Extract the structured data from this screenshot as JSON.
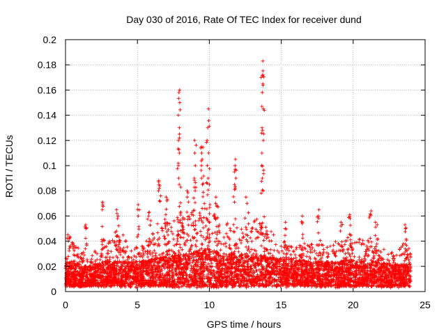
{
  "chart_data": {
    "type": "scatter",
    "title": "Day 030 of 2016, Rate Of TEC Index for receiver dund",
    "xlabel": "GPS time / hours",
    "ylabel": "ROTI / TECUs",
    "xlim": [
      0,
      25
    ],
    "ylim": [
      0,
      0.2
    ],
    "xticks": [
      "0",
      "5",
      "10",
      "15",
      "20",
      "25"
    ],
    "yticks": [
      "0",
      "0.02",
      "0.04",
      "0.06",
      "0.08",
      "0.1",
      "0.12",
      "0.14",
      "0.16",
      "0.18",
      "0.2"
    ],
    "grid": true,
    "marker": "+",
    "color": "#ff0000",
    "data_range_x": [
      0,
      24
    ],
    "envelope": [
      [
        0.0,
        0.012,
        0.03
      ],
      [
        0.5,
        0.012,
        0.04
      ],
      [
        1.0,
        0.01,
        0.035
      ],
      [
        1.5,
        0.008,
        0.03
      ],
      [
        2.0,
        0.01,
        0.032
      ],
      [
        2.5,
        0.01,
        0.038
      ],
      [
        3.0,
        0.012,
        0.04
      ],
      [
        3.5,
        0.012,
        0.05
      ],
      [
        4.0,
        0.012,
        0.048
      ],
      [
        4.5,
        0.012,
        0.04
      ],
      [
        5.0,
        0.012,
        0.035
      ],
      [
        5.5,
        0.013,
        0.04
      ],
      [
        6.0,
        0.014,
        0.045
      ],
      [
        6.5,
        0.015,
        0.052
      ],
      [
        7.0,
        0.016,
        0.055
      ],
      [
        7.5,
        0.017,
        0.058
      ],
      [
        8.0,
        0.018,
        0.062
      ],
      [
        8.5,
        0.018,
        0.06
      ],
      [
        9.0,
        0.02,
        0.065
      ],
      [
        9.5,
        0.022,
        0.075
      ],
      [
        10.0,
        0.022,
        0.07
      ],
      [
        10.5,
        0.02,
        0.062
      ],
      [
        11.0,
        0.018,
        0.058
      ],
      [
        11.5,
        0.018,
        0.055
      ],
      [
        12.0,
        0.017,
        0.05
      ],
      [
        12.5,
        0.016,
        0.052
      ],
      [
        13.0,
        0.016,
        0.055
      ],
      [
        13.5,
        0.017,
        0.06
      ],
      [
        14.0,
        0.016,
        0.052
      ],
      [
        14.5,
        0.015,
        0.045
      ],
      [
        15.0,
        0.014,
        0.04
      ],
      [
        15.5,
        0.014,
        0.042
      ],
      [
        16.0,
        0.013,
        0.04
      ],
      [
        16.5,
        0.013,
        0.038
      ],
      [
        17.0,
        0.012,
        0.038
      ],
      [
        17.5,
        0.012,
        0.036
      ],
      [
        18.0,
        0.012,
        0.038
      ],
      [
        18.5,
        0.012,
        0.04
      ],
      [
        19.0,
        0.012,
        0.04
      ],
      [
        19.5,
        0.013,
        0.045
      ],
      [
        20.0,
        0.013,
        0.045
      ],
      [
        20.5,
        0.012,
        0.042
      ],
      [
        21.0,
        0.012,
        0.042
      ],
      [
        21.5,
        0.012,
        0.04
      ],
      [
        22.0,
        0.011,
        0.036
      ],
      [
        22.5,
        0.01,
        0.032
      ],
      [
        23.0,
        0.01,
        0.03
      ],
      [
        23.5,
        0.01,
        0.04
      ],
      [
        24.0,
        0.01,
        0.035
      ]
    ],
    "spikes": [
      {
        "x": 0.2,
        "values": [
          0.04,
          0.045,
          0.042
        ]
      },
      {
        "x": 1.4,
        "values": [
          0.05,
          0.053
        ]
      },
      {
        "x": 2.6,
        "values": [
          0.068,
          0.071,
          0.065
        ]
      },
      {
        "x": 3.6,
        "values": [
          0.06,
          0.065,
          0.062,
          0.058
        ]
      },
      {
        "x": 5.1,
        "values": [
          0.069,
          0.06
        ]
      },
      {
        "x": 5.8,
        "values": [
          0.063,
          0.06
        ]
      },
      {
        "x": 6.5,
        "values": [
          0.08,
          0.088,
          0.085
        ]
      },
      {
        "x": 7.0,
        "values": [
          0.075,
          0.072
        ]
      },
      {
        "x": 7.9,
        "values": [
          0.1,
          0.11,
          0.12,
          0.13,
          0.14,
          0.15,
          0.16,
          0.158,
          0.125,
          0.09,
          0.085
        ]
      },
      {
        "x": 8.5,
        "values": [
          0.075,
          0.08
        ]
      },
      {
        "x": 9.0,
        "values": [
          0.08,
          0.09,
          0.1,
          0.11,
          0.12
        ]
      },
      {
        "x": 9.5,
        "values": [
          0.085,
          0.09,
          0.1,
          0.105,
          0.11,
          0.115
        ]
      },
      {
        "x": 9.9,
        "values": [
          0.09,
          0.1,
          0.11,
          0.12,
          0.13,
          0.145
        ]
      },
      {
        "x": 10.5,
        "values": [
          0.07,
          0.075
        ]
      },
      {
        "x": 11.8,
        "values": [
          0.085,
          0.09,
          0.095,
          0.1,
          0.105
        ]
      },
      {
        "x": 12.6,
        "values": [
          0.07,
          0.075
        ]
      },
      {
        "x": 13.7,
        "values": [
          0.08,
          0.09,
          0.1,
          0.11,
          0.12,
          0.13,
          0.145,
          0.165,
          0.172,
          0.183,
          0.147,
          0.128
        ]
      },
      {
        "x": 15.3,
        "values": [
          0.05,
          0.055
        ]
      },
      {
        "x": 16.5,
        "values": [
          0.055,
          0.06
        ]
      },
      {
        "x": 17.6,
        "values": [
          0.06,
          0.065
        ]
      },
      {
        "x": 19.2,
        "values": [
          0.052,
          0.055
        ]
      },
      {
        "x": 19.8,
        "values": [
          0.058,
          0.061
        ]
      },
      {
        "x": 21.2,
        "values": [
          0.06,
          0.064
        ]
      },
      {
        "x": 21.6,
        "values": [
          0.055
        ]
      },
      {
        "x": 23.6,
        "values": [
          0.05,
          0.053
        ]
      }
    ]
  }
}
